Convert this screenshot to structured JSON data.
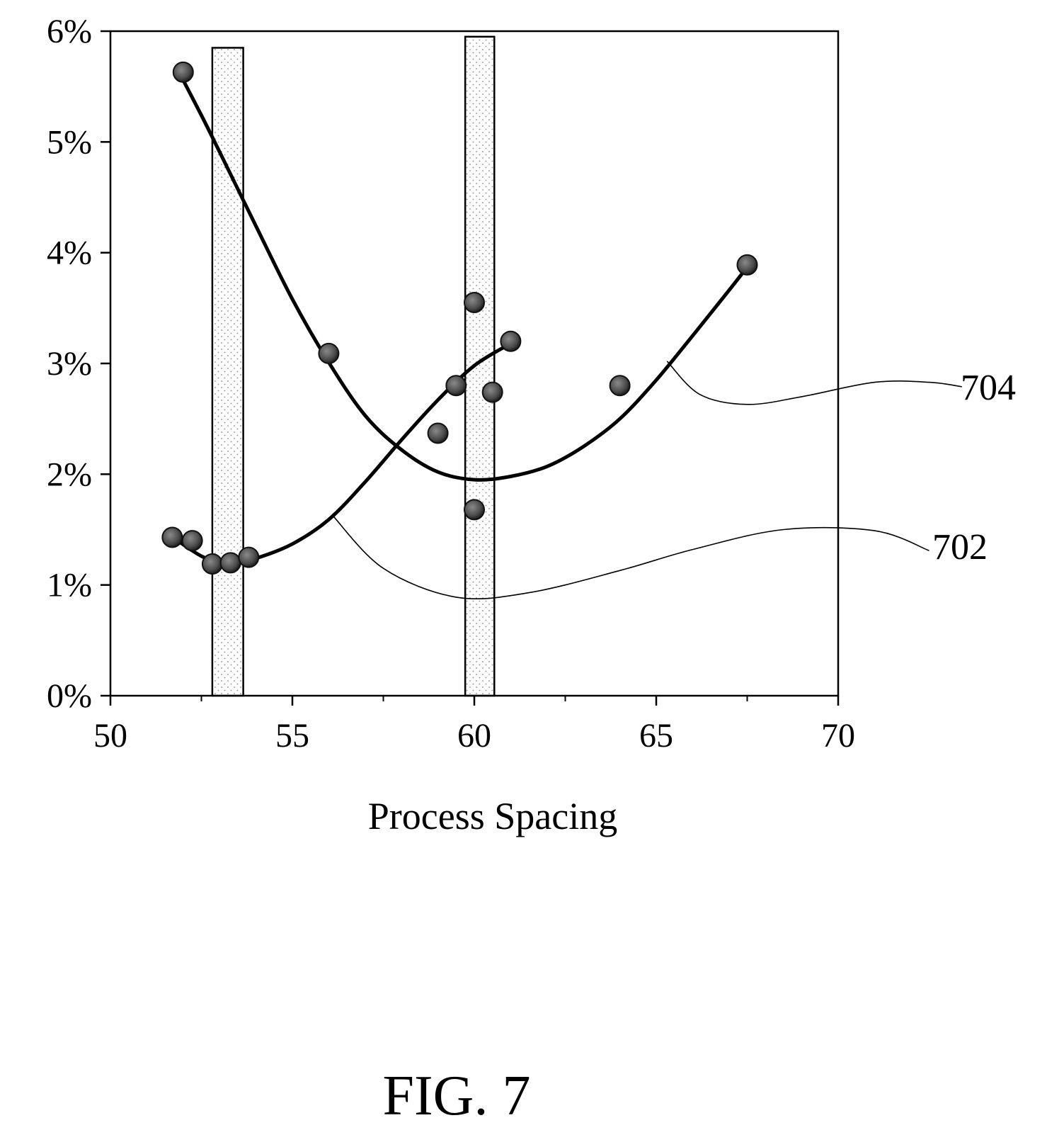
{
  "figure": {
    "caption": "FIG. 7"
  },
  "chart_data": {
    "type": "scatter",
    "title": "",
    "xlabel": "Process Spacing",
    "ylabel": "",
    "xlim": [
      50,
      70
    ],
    "ylim": [
      0,
      0.06
    ],
    "x_ticks": [
      "50",
      "55",
      "60",
      "65",
      "70"
    ],
    "y_ticks": [
      "0%",
      "1%",
      "2%",
      "3%",
      "4%",
      "5%",
      "6%"
    ],
    "grid": false,
    "legend": "none",
    "highlight_bands": [
      {
        "x0": 52.8,
        "x1": 53.65,
        "y_top": 0.0585
      },
      {
        "x0": 59.75,
        "x1": 60.55,
        "y_top": 0.0595
      }
    ],
    "series": [
      {
        "label": "702",
        "points": [
          {
            "x": 51.7,
            "y": 0.0143
          },
          {
            "x": 52.25,
            "y": 0.014
          },
          {
            "x": 52.8,
            "y": 0.0119
          },
          {
            "x": 53.3,
            "y": 0.012
          },
          {
            "x": 53.8,
            "y": 0.0125
          },
          {
            "x": 59.0,
            "y": 0.0237
          },
          {
            "x": 59.5,
            "y": 0.028
          },
          {
            "x": 60.0,
            "y": 0.0355
          },
          {
            "x": 60.5,
            "y": 0.0274
          },
          {
            "x": 61.0,
            "y": 0.032
          }
        ],
        "fit": [
          [
            51.8,
            0.0141
          ],
          [
            52.5,
            0.0126
          ],
          [
            53.0,
            0.0121
          ],
          [
            53.5,
            0.0121
          ],
          [
            54.0,
            0.0124
          ],
          [
            55.0,
            0.0137
          ],
          [
            56.0,
            0.0159
          ],
          [
            57.0,
            0.0193
          ],
          [
            58.0,
            0.0231
          ],
          [
            59.0,
            0.0267
          ],
          [
            60.0,
            0.0298
          ],
          [
            61.0,
            0.0318
          ]
        ],
        "callout_anchor": [
          56.1,
          0.0163
        ],
        "callout_path": [
          [
            56.1,
            0.0163
          ],
          [
            57.5,
            0.0115
          ],
          [
            59.5,
            0.0089
          ],
          [
            61.5,
            0.0093
          ],
          [
            64.0,
            0.0113
          ],
          [
            66.0,
            0.0132
          ],
          [
            68.5,
            0.015
          ],
          [
            71.0,
            0.0149
          ],
          [
            72.5,
            0.0131
          ]
        ]
      },
      {
        "label": "704",
        "points": [
          {
            "x": 52.0,
            "y": 0.0563
          },
          {
            "x": 56.0,
            "y": 0.0309
          },
          {
            "x": 60.0,
            "y": 0.0168
          },
          {
            "x": 64.0,
            "y": 0.028
          },
          {
            "x": 67.5,
            "y": 0.0389
          }
        ],
        "fit": [
          [
            51.9,
            0.0562
          ],
          [
            52.5,
            0.0524
          ],
          [
            53.0,
            0.0491
          ],
          [
            54.0,
            0.0424
          ],
          [
            55.0,
            0.0358
          ],
          [
            56.0,
            0.0301
          ],
          [
            57.0,
            0.0253
          ],
          [
            58.0,
            0.0222
          ],
          [
            59.0,
            0.0202
          ],
          [
            60.0,
            0.0195
          ],
          [
            61.0,
            0.0198
          ],
          [
            62.0,
            0.0207
          ],
          [
            63.0,
            0.0225
          ],
          [
            64.0,
            0.025
          ],
          [
            65.0,
            0.0285
          ],
          [
            66.0,
            0.0325
          ],
          [
            67.0,
            0.0366
          ],
          [
            67.5,
            0.0387
          ]
        ],
        "callout_anchor": [
          65.3,
          0.0302
        ],
        "callout_path": [
          [
            65.3,
            0.0302
          ],
          [
            66.2,
            0.0272
          ],
          [
            67.5,
            0.0263
          ],
          [
            69.0,
            0.027
          ],
          [
            71.0,
            0.0283
          ],
          [
            72.5,
            0.0283
          ],
          [
            73.4,
            0.0279
          ]
        ]
      }
    ]
  }
}
